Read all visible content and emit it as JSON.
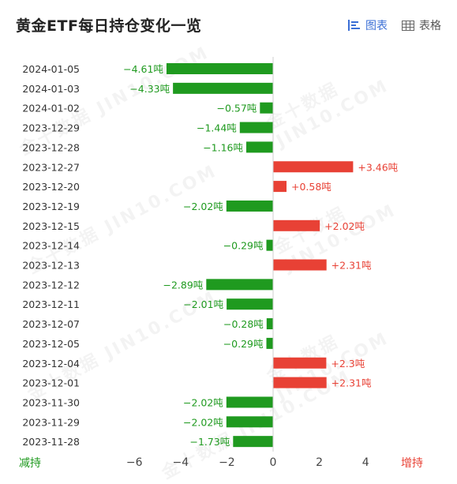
{
  "header": {
    "title": "黄金ETF每日持仓变化一览",
    "tabs": [
      {
        "label": "图表",
        "icon": "chart-list-icon",
        "active": true
      },
      {
        "label": "表格",
        "icon": "table-grid-icon",
        "active": false
      }
    ]
  },
  "colors": {
    "negative": "#1f9a1f",
    "positive": "#e84135",
    "accent": "#3b6fd6"
  },
  "axis_labels": {
    "left": "减持",
    "right": "增持"
  },
  "watermark": "金十数据 JIN10.COM",
  "chart_data": {
    "type": "bar",
    "orientation": "horizontal",
    "unit": "吨",
    "categories": [
      "2024-01-05",
      "2024-01-03",
      "2024-01-02",
      "2023-12-29",
      "2023-12-28",
      "2023-12-27",
      "2023-12-20",
      "2023-12-19",
      "2023-12-15",
      "2023-12-14",
      "2023-12-13",
      "2023-12-12",
      "2023-12-11",
      "2023-12-07",
      "2023-12-05",
      "2023-12-04",
      "2023-12-01",
      "2023-11-30",
      "2023-11-29",
      "2023-11-28"
    ],
    "values": [
      -4.61,
      -4.33,
      -0.57,
      -1.44,
      -1.16,
      3.46,
      0.58,
      -2.02,
      2.02,
      -0.29,
      2.31,
      -2.89,
      -2.01,
      -0.28,
      -0.29,
      2.3,
      2.31,
      -2.02,
      -2.02,
      -1.73
    ],
    "data_labels": [
      "−4.61吨",
      "−4.33吨",
      "−0.57吨",
      "−1.44吨",
      "−1.16吨",
      "+3.46吨",
      "+0.58吨",
      "−2.02吨",
      "+2.02吨",
      "−0.29吨",
      "+2.31吨",
      "−2.89吨",
      "−2.01吨",
      "−0.28吨",
      "−0.29吨",
      "+2.3吨",
      "+2.31吨",
      "−2.02吨",
      "−2.02吨",
      "−1.73吨"
    ],
    "x_ticks": [
      -6,
      -4,
      -2,
      0,
      2,
      4
    ],
    "x_tick_labels": [
      "−6",
      "−4",
      "−2",
      "0",
      "2",
      "4"
    ],
    "xlim": [
      -6,
      4
    ],
    "grid": false
  }
}
